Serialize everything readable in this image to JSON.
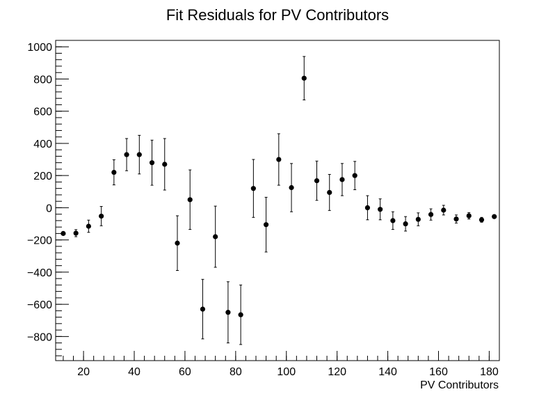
{
  "chart_data": {
    "type": "scatter",
    "title": "Fit Residuals for PV Contributors",
    "xlabel": "PV Contributors",
    "ylabel": "",
    "xlim": [
      9,
      184
    ],
    "ylim": [
      -950,
      1040
    ],
    "x_ticks": [
      20,
      40,
      60,
      80,
      100,
      120,
      140,
      160,
      180
    ],
    "y_ticks": [
      -800,
      -600,
      -400,
      -200,
      0,
      200,
      400,
      600,
      800,
      1000
    ],
    "grid": false,
    "legend": "none",
    "marker_color": "#000000",
    "series": [
      {
        "x": [
          12,
          17,
          22,
          27,
          32,
          37,
          42,
          47,
          52,
          57,
          62,
          67,
          72,
          77,
          82,
          87,
          92,
          97,
          102,
          107,
          112,
          117,
          122,
          127,
          132,
          137,
          142,
          147,
          152,
          157,
          162,
          167,
          172,
          177,
          182
        ],
        "y": [
          -160,
          -158,
          -115,
          -52,
          220,
          330,
          330,
          280,
          270,
          -220,
          50,
          -630,
          -180,
          -650,
          -665,
          120,
          -105,
          300,
          125,
          805,
          168,
          95,
          175,
          200,
          0,
          -10,
          -80,
          -100,
          -72,
          -42,
          -15,
          -70,
          -50,
          -75,
          -55
        ],
        "yerr": [
          8,
          22,
          38,
          60,
          78,
          100,
          120,
          140,
          160,
          170,
          185,
          185,
          190,
          190,
          185,
          180,
          170,
          160,
          150,
          135,
          122,
          112,
          100,
          88,
          75,
          65,
          55,
          45,
          40,
          35,
          30,
          25,
          20,
          15,
          10
        ]
      }
    ]
  }
}
